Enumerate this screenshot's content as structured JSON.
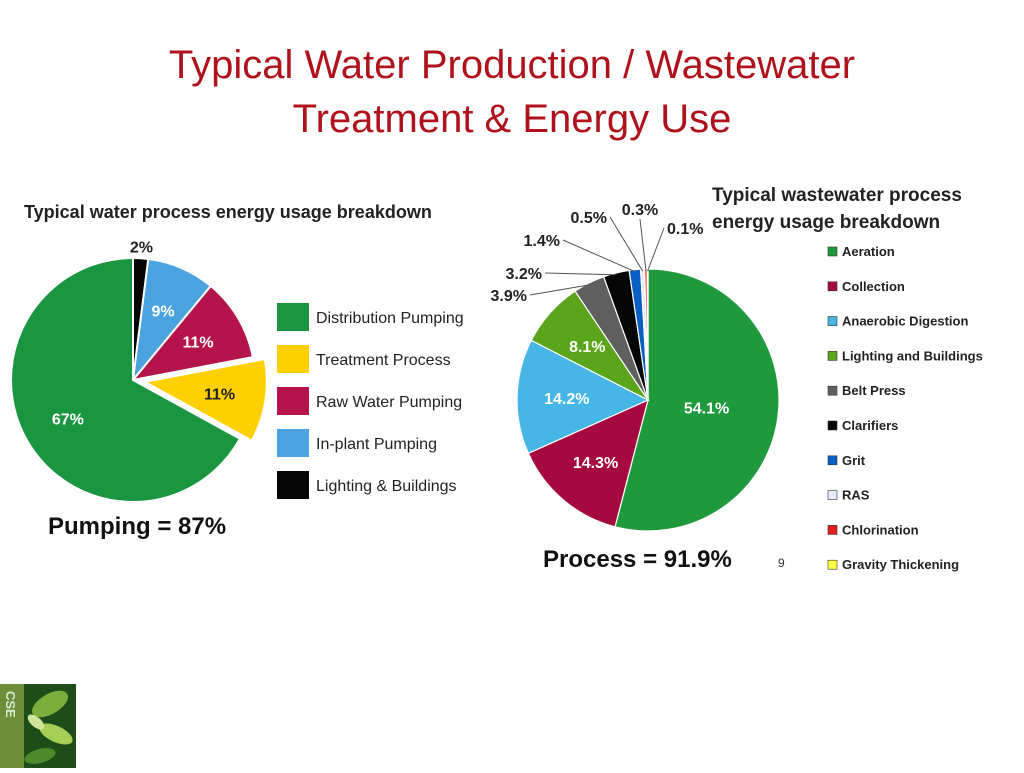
{
  "slide": {
    "title_line1": "Typical Water Production / Wastewater",
    "title_line2": "Treatment & Energy Use",
    "page_number": "9",
    "logo_text": "CSE"
  },
  "chart_data": [
    {
      "type": "pie",
      "title": "Typical water process energy usage breakdown",
      "summary": "Pumping = 87%",
      "slices": [
        {
          "name": "Distribution Pumping",
          "value": 67,
          "label": "67%",
          "color": "#1a9641",
          "exploded": false
        },
        {
          "name": "Treatment Process",
          "value": 11,
          "label": "11%",
          "color": "#ffd000",
          "exploded": true
        },
        {
          "name": "Raw Water Pumping",
          "value": 11,
          "label": "11%",
          "color": "#b5134b",
          "exploded": false
        },
        {
          "name": "In-plant Pumping",
          "value": 9,
          "label": "9%",
          "color": "#4aa3df",
          "exploded": false
        },
        {
          "name": "Lighting & Buildings",
          "value": 2,
          "label": "2%",
          "color": "#050505",
          "exploded": false
        }
      ],
      "legend_placement": "right",
      "legend": [
        "Distribution Pumping",
        "Treatment Process",
        "Raw Water Pumping",
        "In-plant Pumping",
        "Lighting & Buildings"
      ]
    },
    {
      "type": "pie",
      "title_lines": [
        "Typical wastewater process",
        "energy usage breakdown"
      ],
      "summary": "Process = 91.9%",
      "slices": [
        {
          "name": "Aeration",
          "value": 54.1,
          "label": "54.1%",
          "color": "#1e9a3c"
        },
        {
          "name": "Collection",
          "value": 14.3,
          "label": "14.3%",
          "color": "#a5093f"
        },
        {
          "name": "Anaerobic Digestion",
          "value": 14.2,
          "label": "14.2%",
          "color": "#45b6e6"
        },
        {
          "name": "Lighting and Buildings",
          "value": 8.1,
          "label": "8.1%",
          "color": "#5aa519"
        },
        {
          "name": "Belt Press",
          "value": 3.9,
          "label": "3.9%",
          "color": "#5f5f5f"
        },
        {
          "name": "Clarifiers",
          "value": 3.2,
          "label": "3.2%",
          "color": "#050505"
        },
        {
          "name": "Grit",
          "value": 1.4,
          "label": "1.4%",
          "color": "#0b5fc4"
        },
        {
          "name": "RAS",
          "value": 0.5,
          "label": "0.5%",
          "color": "#e8ecf8"
        },
        {
          "name": "Chlorination",
          "value": 0.3,
          "label": "0.3%",
          "color": "#e61b1b"
        },
        {
          "name": "Gravity Thickening",
          "value": 0.1,
          "label": "0.1%",
          "color": "#ffff40"
        }
      ],
      "legend_placement": "right",
      "legend": [
        "Aeration",
        "Collection",
        "Anaerobic Digestion",
        "Lighting and Buildings",
        "Belt Press",
        "Clarifiers",
        "Grit",
        "RAS",
        "Chlorination",
        "Gravity Thickening"
      ]
    }
  ]
}
